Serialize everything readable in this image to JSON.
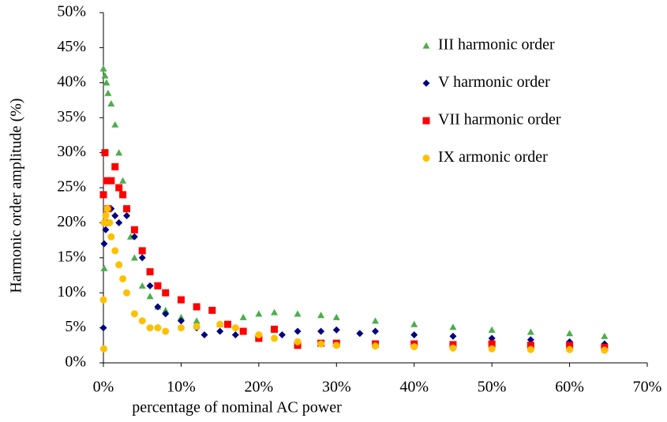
{
  "chart_data": {
    "type": "scatter",
    "xlabel": "percentage of nominal AC power",
    "ylabel": "Harmonic order amplitude (%)",
    "xlim": [
      0,
      70
    ],
    "ylim": [
      0,
      50
    ],
    "xticks": [
      {
        "value": 0,
        "label": "0%"
      },
      {
        "value": 10,
        "label": "10%"
      },
      {
        "value": 20,
        "label": "20%"
      },
      {
        "value": 30,
        "label": "30%"
      },
      {
        "value": 40,
        "label": "40%"
      },
      {
        "value": 50,
        "label": "50%"
      },
      {
        "value": 60,
        "label": "60%"
      },
      {
        "value": 70,
        "label": "70%"
      }
    ],
    "yticks": [
      {
        "value": 0,
        "label": "0%"
      },
      {
        "value": 5,
        "label": "5%"
      },
      {
        "value": 10,
        "label": "10%"
      },
      {
        "value": 15,
        "label": "15%"
      },
      {
        "value": 20,
        "label": "20%"
      },
      {
        "value": 25,
        "label": "25%"
      },
      {
        "value": 30,
        "label": "30%"
      },
      {
        "value": 35,
        "label": "35%"
      },
      {
        "value": 40,
        "label": "40%"
      },
      {
        "value": 45,
        "label": "45%"
      },
      {
        "value": 50,
        "label": "50%"
      }
    ],
    "grid": false,
    "legend": "upper right",
    "series": [
      {
        "name": "III harmonic order",
        "color": "#4cae4c",
        "marker": "triangle",
        "x": [
          0,
          0.2,
          0.4,
          0.6,
          1,
          1.5,
          2,
          2.5,
          3,
          3.5,
          4,
          5,
          6,
          7,
          8,
          10,
          12,
          15,
          18,
          20,
          22,
          25,
          28,
          30,
          35,
          40,
          45,
          50,
          55,
          60,
          64.5,
          0.1
        ],
        "values": [
          42,
          41,
          40,
          38.5,
          37,
          34,
          30,
          26,
          22,
          18,
          15,
          11,
          9.5,
          8,
          7.5,
          6.5,
          6,
          5.5,
          6.5,
          7,
          7.2,
          7,
          6.8,
          6.5,
          6,
          5.5,
          5.1,
          4.7,
          4.4,
          4.2,
          3.8,
          13.5
        ]
      },
      {
        "name": "V harmonic order",
        "color": "#000080",
        "marker": "diamond",
        "x": [
          0,
          0.1,
          0.3,
          0.5,
          1,
          1.5,
          2,
          3,
          4,
          5,
          6,
          7,
          8,
          10,
          12,
          13,
          15,
          17,
          20,
          23,
          25,
          28,
          30,
          33,
          35,
          40,
          45,
          50,
          55,
          60,
          64.5
        ],
        "values": [
          5,
          17,
          19,
          20,
          22,
          21,
          20,
          21,
          18,
          15,
          11,
          8,
          7,
          6,
          5,
          4,
          4.5,
          4,
          3.5,
          4,
          4.5,
          4.5,
          4.7,
          4.2,
          4.5,
          4,
          3.8,
          3.5,
          3.3,
          3,
          2.7
        ]
      },
      {
        "name": "VII harmonic order",
        "color": "#ff0000",
        "marker": "square",
        "x": [
          0,
          0.2,
          0.4,
          0.6,
          1,
          1.5,
          2,
          2.5,
          3,
          4,
          5,
          6,
          7,
          8,
          10,
          12,
          14,
          16,
          18,
          20,
          22,
          25,
          28,
          30,
          35,
          40,
          45,
          50,
          55,
          60,
          64.5
        ],
        "values": [
          24,
          30,
          26,
          22,
          26,
          28,
          25,
          24,
          22,
          19,
          16,
          13,
          11,
          10,
          9,
          8,
          7.5,
          5.5,
          4.5,
          3.5,
          4.8,
          2.5,
          2.8,
          2.8,
          2.7,
          2.7,
          2.6,
          2.7,
          2.5,
          2.5,
          2.2
        ]
      },
      {
        "name": "IX armonic order",
        "color": "#ffc000",
        "marker": "circle",
        "x": [
          0,
          0.1,
          0.3,
          0.5,
          0.8,
          1,
          1.5,
          2,
          2.5,
          3,
          4,
          5,
          6,
          7,
          8,
          10,
          12,
          15,
          17,
          20,
          22,
          25,
          28,
          30,
          35,
          40,
          45,
          50,
          55,
          60,
          64.5,
          0.05
        ],
        "values": [
          9,
          20,
          21,
          22,
          20,
          18,
          16,
          14,
          12,
          10,
          7,
          6,
          5,
          5,
          4.5,
          5,
          5.2,
          5.5,
          5,
          4,
          3.5,
          3,
          2.7,
          2.5,
          2.4,
          2.3,
          2.1,
          2,
          1.9,
          1.9,
          1.8,
          2
        ]
      }
    ]
  }
}
